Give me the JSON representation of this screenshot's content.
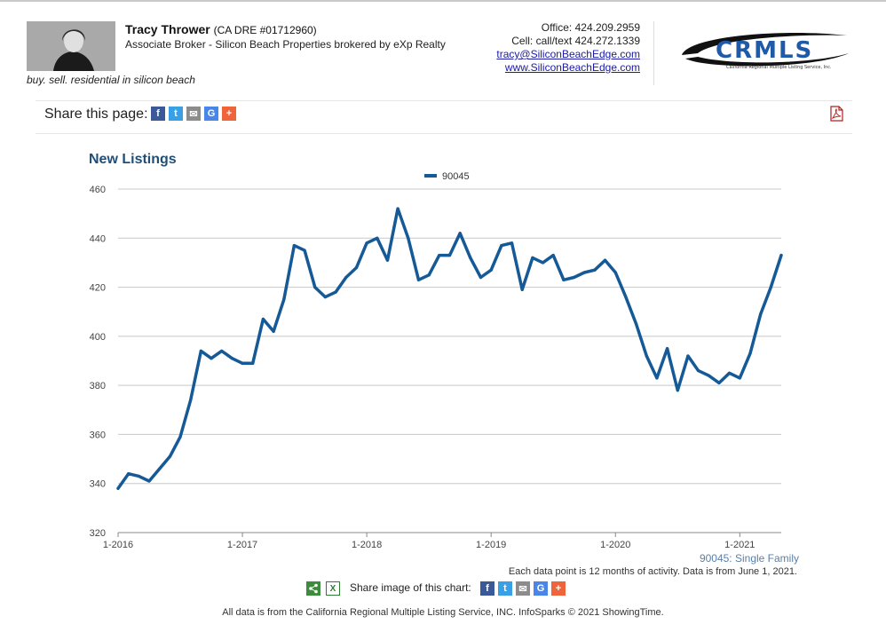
{
  "agent": {
    "name": "Tracy Thrower",
    "dre": "(CA DRE #01712960)",
    "title": "Associate Broker - Silicon Beach Properties brokered by eXp Realty",
    "tagline": "buy. sell. residential in silicon beach"
  },
  "contact": {
    "office": "Office: 424.209.2959",
    "cell": "Cell: call/text 424.272.1339",
    "email": "tracy@SiliconBeachEdge.com",
    "website": "www.SiliconBeachEdge.com"
  },
  "logo": {
    "text": "CRMLS",
    "subtext": "California Regional Multiple Listing Service, Inc."
  },
  "share_page": {
    "label": "Share this page:",
    "icons": [
      "facebook-icon",
      "twitter-icon",
      "email-icon",
      "google-icon",
      "plus-icon"
    ],
    "pdf_icon": "pdf-icon"
  },
  "chart_data": {
    "type": "line",
    "title": "New Listings",
    "xlabel": "",
    "ylabel": "",
    "ylim": [
      320,
      460
    ],
    "y_ticks": [
      320,
      340,
      360,
      380,
      400,
      420,
      440,
      460
    ],
    "x_tick_labels": [
      "1-2016",
      "1-2017",
      "1-2018",
      "1-2019",
      "1-2020",
      "1-2021"
    ],
    "x_start": "2016-01",
    "x_end": "2021-05",
    "grid": true,
    "legend_position": "top-center",
    "series": [
      {
        "name": "90045",
        "color": "#155a96",
        "x": [
          "2016-01",
          "2016-02",
          "2016-03",
          "2016-04",
          "2016-05",
          "2016-06",
          "2016-07",
          "2016-08",
          "2016-09",
          "2016-10",
          "2016-11",
          "2016-12",
          "2017-01",
          "2017-02",
          "2017-03",
          "2017-04",
          "2017-05",
          "2017-06",
          "2017-07",
          "2017-08",
          "2017-09",
          "2017-10",
          "2017-11",
          "2017-12",
          "2018-01",
          "2018-02",
          "2018-03",
          "2018-04",
          "2018-05",
          "2018-06",
          "2018-07",
          "2018-08",
          "2018-09",
          "2018-10",
          "2018-11",
          "2018-12",
          "2019-01",
          "2019-02",
          "2019-03",
          "2019-04",
          "2019-05",
          "2019-06",
          "2019-07",
          "2019-08",
          "2019-09",
          "2019-10",
          "2019-11",
          "2019-12",
          "2020-01",
          "2020-02",
          "2020-03",
          "2020-04",
          "2020-05",
          "2020-06",
          "2020-07",
          "2020-08",
          "2020-09",
          "2020-10",
          "2020-11",
          "2020-12",
          "2021-01",
          "2021-02",
          "2021-03",
          "2021-04",
          "2021-05"
        ],
        "values": [
          338,
          344,
          343,
          341,
          346,
          351,
          359,
          374,
          394,
          391,
          394,
          391,
          389,
          389,
          407,
          402,
          415,
          437,
          435,
          420,
          416,
          418,
          424,
          428,
          438,
          440,
          431,
          452,
          440,
          423,
          425,
          433,
          433,
          442,
          432,
          424,
          427,
          437,
          438,
          419,
          432,
          430,
          433,
          423,
          424,
          426,
          427,
          431,
          426,
          416,
          405,
          392,
          383,
          395,
          378,
          392,
          386,
          384,
          381,
          385,
          383,
          393,
          409,
          420,
          433
        ]
      }
    ]
  },
  "chart_footer": {
    "series_label": "90045: Single Family",
    "note": "Each data point is 12 months of activity. Data is from June 1, 2021.",
    "share_image_label": "Share image of this chart:"
  },
  "footer": {
    "text": "All data is from the California Regional Multiple Listing Service, INC. InfoSparks © 2021 ShowingTime."
  }
}
